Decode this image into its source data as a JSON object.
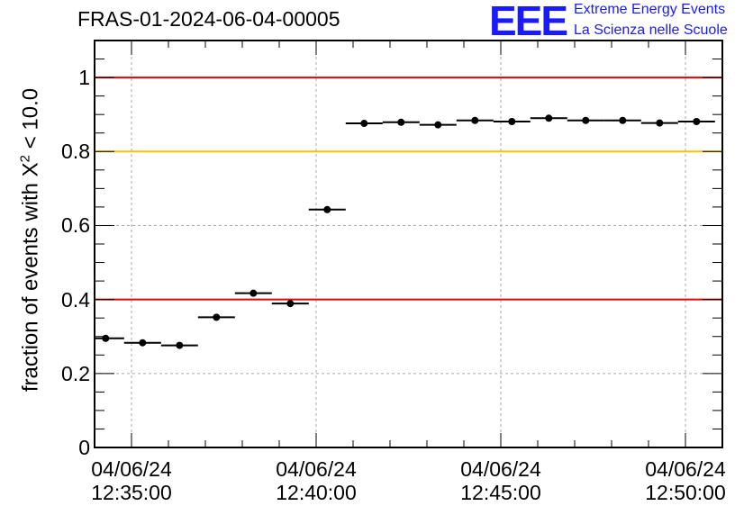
{
  "title": "FRAS-01-2024-06-04-00005",
  "logo": {
    "mark": "EEE",
    "line1": "Extreme Energy Events",
    "line2": "La Scienza nelle Scuole"
  },
  "colors": {
    "red_line": "#e60000",
    "yellow_line": "#ffc000",
    "logo_blue": "#1a1aff",
    "grid": "#aaaaaa"
  },
  "chart_data": {
    "type": "scatter",
    "ylabel": "fraction of events with X² < 10.0",
    "ylabel_main": "fraction of events with X",
    "ylabel_sup": "2",
    "ylabel_tail": " < 10.0",
    "ylim": [
      0,
      1.1
    ],
    "xlim_minutes": [
      12.5,
      29.5
    ],
    "yticks": [
      {
        "value": 0,
        "label": "0"
      },
      {
        "value": 0.2,
        "label": "0.2"
      },
      {
        "value": 0.4,
        "label": "0.4"
      },
      {
        "value": 0.6,
        "label": "0.6"
      },
      {
        "value": 0.8,
        "label": "0.8"
      },
      {
        "value": 1.0,
        "label": "1"
      }
    ],
    "xticks": [
      {
        "minute": 13.5,
        "date": "04/06/24",
        "time": "12:35:00"
      },
      {
        "minute": 18.5,
        "date": "04/06/24",
        "time": "12:40:00"
      },
      {
        "minute": 23.5,
        "date": "04/06/24",
        "time": "12:45:00"
      },
      {
        "minute": 28.5,
        "date": "04/06/24",
        "time": "12:50:00"
      }
    ],
    "reference_lines": [
      {
        "y": 1.0,
        "color": "red"
      },
      {
        "y": 0.8,
        "color": "yellow"
      },
      {
        "y": 0.4,
        "color": "red"
      }
    ],
    "grid": true,
    "points": [
      {
        "x": 12.8,
        "y": 0.295
      },
      {
        "x": 13.8,
        "y": 0.283
      },
      {
        "x": 14.8,
        "y": 0.276
      },
      {
        "x": 15.8,
        "y": 0.352
      },
      {
        "x": 16.8,
        "y": 0.417
      },
      {
        "x": 17.8,
        "y": 0.389
      },
      {
        "x": 18.8,
        "y": 0.643
      },
      {
        "x": 19.8,
        "y": 0.876
      },
      {
        "x": 20.8,
        "y": 0.879
      },
      {
        "x": 21.8,
        "y": 0.872
      },
      {
        "x": 22.8,
        "y": 0.884
      },
      {
        "x": 23.8,
        "y": 0.881
      },
      {
        "x": 24.8,
        "y": 0.89
      },
      {
        "x": 25.8,
        "y": 0.884
      },
      {
        "x": 26.8,
        "y": 0.884
      },
      {
        "x": 27.8,
        "y": 0.877
      },
      {
        "x": 28.8,
        "y": 0.881
      }
    ]
  }
}
